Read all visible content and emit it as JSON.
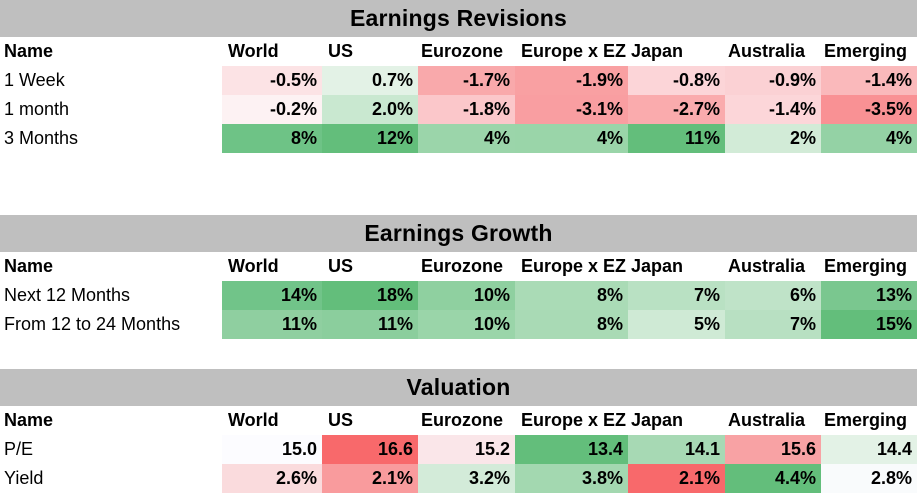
{
  "columns": {
    "name": "Name",
    "world": "World",
    "us": "US",
    "eurozone": "Eurozone",
    "europe_x_ez": "Europe x EZ",
    "japan": "Japan",
    "australia": "Australia",
    "emerging": "Emerging"
  },
  "sections": [
    {
      "title": "Earnings Revisions",
      "rows": [
        {
          "label": "1 Week",
          "values": [
            "-0.5%",
            "0.7%",
            "-1.7%",
            "-1.9%",
            "-0.8%",
            "-0.9%",
            "-1.4%"
          ],
          "colors": [
            "#fce3e5",
            "#e3f2e6",
            "#f9a9ab",
            "#f9a0a2",
            "#fcd5d8",
            "#fbd1d4",
            "#fab9bb"
          ]
        },
        {
          "label": "1 month",
          "values": [
            "-0.2%",
            "2.0%",
            "-1.8%",
            "-3.1%",
            "-2.7%",
            "-1.4%",
            "-3.5%"
          ],
          "colors": [
            "#fdf2f3",
            "#c9e8d0",
            "#fbc7ca",
            "#f99ea1",
            "#faabad",
            "#fcd6d9",
            "#f99194"
          ]
        },
        {
          "label": "3 Months",
          "values": [
            "8%",
            "12%",
            "4%",
            "4%",
            "11%",
            "2%",
            "4%"
          ],
          "colors": [
            "#6ec386",
            "#63be7b",
            "#9bd5aa",
            "#9ad5a9",
            "#63be7b",
            "#d2ebd7",
            "#94d2a5"
          ]
        }
      ]
    },
    {
      "title": "Earnings Growth",
      "rows": [
        {
          "label": "Next 12 Months",
          "values": [
            "14%",
            "18%",
            "10%",
            "8%",
            "7%",
            "6%",
            "13%"
          ],
          "colors": [
            "#71c489",
            "#63be7b",
            "#8fd0a0",
            "#aadbb6",
            "#b9e1c3",
            "#bfe3c8",
            "#7ac78f"
          ]
        },
        {
          "label": "From 12 to 24 Months",
          "values": [
            "11%",
            "11%",
            "10%",
            "8%",
            "5%",
            "7%",
            "15%"
          ],
          "colors": [
            "#8fcfa0",
            "#8bce9d",
            "#9ad5a9",
            "#a9dab5",
            "#cfead5",
            "#b8e0c2",
            "#63be7b"
          ]
        }
      ]
    },
    {
      "title": "Valuation",
      "rows": [
        {
          "label": "P/E",
          "values": [
            "15.0",
            "16.6",
            "15.2",
            "13.4",
            "14.1",
            "15.6",
            "14.4"
          ],
          "colors": [
            "#fcfcff",
            "#f8696b",
            "#fae6e9",
            "#63be7b",
            "#a7d9b4",
            "#f8a2a4",
            "#e3f2e6"
          ]
        },
        {
          "label": "Yield",
          "values": [
            "2.6%",
            "2.1%",
            "3.2%",
            "3.8%",
            "2.1%",
            "4.4%",
            "2.8%"
          ],
          "colors": [
            "#fadbdd",
            "#f99b9d",
            "#d3ebd9",
            "#a3d8b0",
            "#f8696b",
            "#63be7b",
            "#f9fbfc"
          ]
        }
      ]
    }
  ]
}
